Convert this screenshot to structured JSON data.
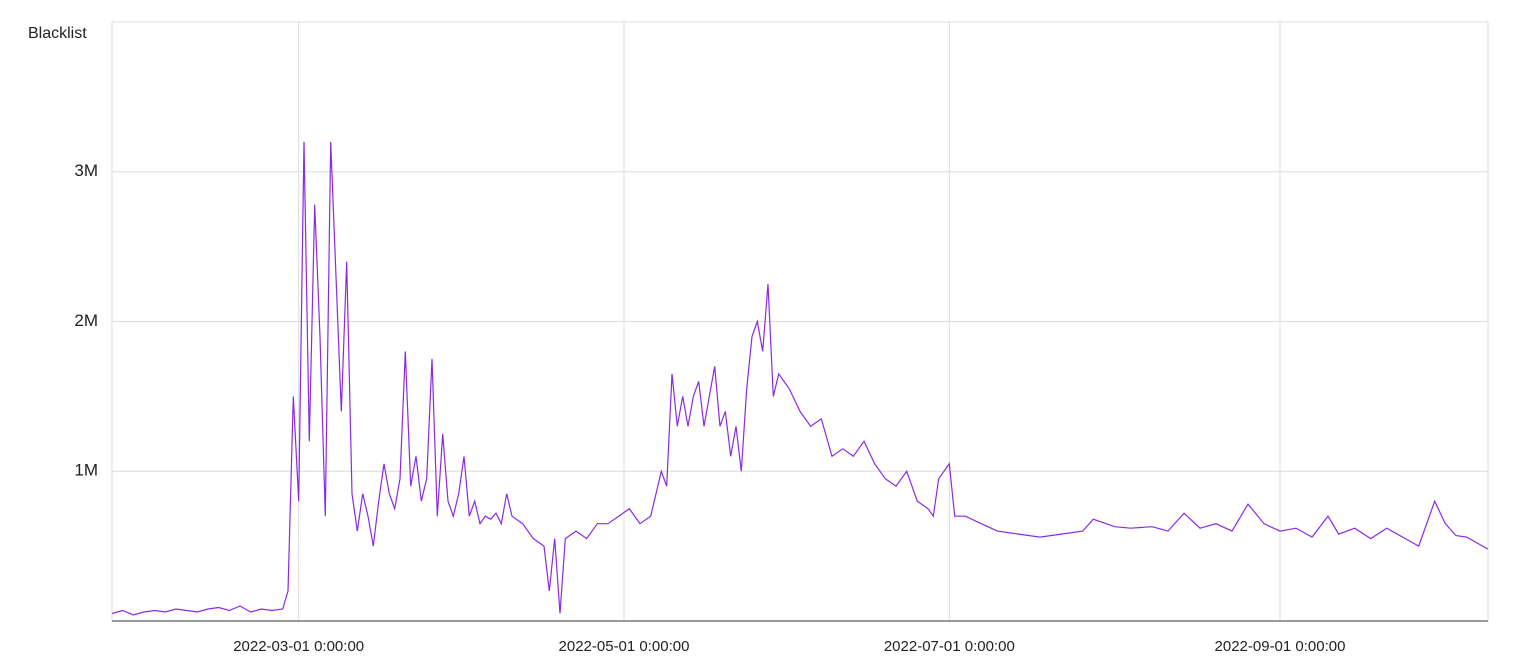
{
  "chart_data": {
    "type": "line",
    "ylabel": "Blacklist",
    "x": [
      "2022-01-25",
      "2022-01-27",
      "2022-01-29",
      "2022-01-31",
      "2022-02-02",
      "2022-02-04",
      "2022-02-06",
      "2022-02-08",
      "2022-02-10",
      "2022-02-12",
      "2022-02-14",
      "2022-02-16",
      "2022-02-18",
      "2022-02-20",
      "2022-02-22",
      "2022-02-24",
      "2022-02-26",
      "2022-02-27",
      "2022-02-28",
      "2022-03-01",
      "2022-03-02",
      "2022-03-03",
      "2022-03-04",
      "2022-03-05",
      "2022-03-06",
      "2022-03-07",
      "2022-03-08",
      "2022-03-09",
      "2022-03-10",
      "2022-03-11",
      "2022-03-12",
      "2022-03-13",
      "2022-03-14",
      "2022-03-15",
      "2022-03-16",
      "2022-03-17",
      "2022-03-18",
      "2022-03-19",
      "2022-03-20",
      "2022-03-21",
      "2022-03-22",
      "2022-03-23",
      "2022-03-24",
      "2022-03-25",
      "2022-03-26",
      "2022-03-27",
      "2022-03-28",
      "2022-03-29",
      "2022-03-30",
      "2022-03-31",
      "2022-04-01",
      "2022-04-02",
      "2022-04-03",
      "2022-04-04",
      "2022-04-05",
      "2022-04-06",
      "2022-04-07",
      "2022-04-08",
      "2022-04-09",
      "2022-04-10",
      "2022-04-12",
      "2022-04-14",
      "2022-04-16",
      "2022-04-17",
      "2022-04-18",
      "2022-04-19",
      "2022-04-20",
      "2022-04-22",
      "2022-04-24",
      "2022-04-26",
      "2022-04-28",
      "2022-04-30",
      "2022-05-02",
      "2022-05-04",
      "2022-05-06",
      "2022-05-08",
      "2022-05-09",
      "2022-05-10",
      "2022-05-11",
      "2022-05-12",
      "2022-05-13",
      "2022-05-14",
      "2022-05-15",
      "2022-05-16",
      "2022-05-17",
      "2022-05-18",
      "2022-05-19",
      "2022-05-20",
      "2022-05-21",
      "2022-05-22",
      "2022-05-23",
      "2022-05-24",
      "2022-05-25",
      "2022-05-26",
      "2022-05-27",
      "2022-05-28",
      "2022-05-29",
      "2022-05-30",
      "2022-06-01",
      "2022-06-03",
      "2022-06-05",
      "2022-06-07",
      "2022-06-09",
      "2022-06-11",
      "2022-06-13",
      "2022-06-15",
      "2022-06-17",
      "2022-06-19",
      "2022-06-21",
      "2022-06-23",
      "2022-06-25",
      "2022-06-27",
      "2022-06-28",
      "2022-06-29",
      "2022-07-01",
      "2022-07-02",
      "2022-07-04",
      "2022-07-07",
      "2022-07-10",
      "2022-07-14",
      "2022-07-18",
      "2022-07-22",
      "2022-07-26",
      "2022-07-28",
      "2022-08-01",
      "2022-08-04",
      "2022-08-08",
      "2022-08-11",
      "2022-08-14",
      "2022-08-17",
      "2022-08-20",
      "2022-08-23",
      "2022-08-26",
      "2022-08-29",
      "2022-09-01",
      "2022-09-04",
      "2022-09-07",
      "2022-09-10",
      "2022-09-12",
      "2022-09-15",
      "2022-09-18",
      "2022-09-21",
      "2022-09-24",
      "2022-09-27",
      "2022-09-30",
      "2022-10-02",
      "2022-10-04",
      "2022-10-06",
      "2022-10-08",
      "2022-10-10"
    ],
    "series": [
      {
        "name": "Blacklist",
        "color": "#8a2be2",
        "values": [
          50000,
          70000,
          40000,
          60000,
          70000,
          60000,
          80000,
          70000,
          60000,
          80000,
          90000,
          70000,
          100000,
          60000,
          80000,
          70000,
          80000,
          200000,
          1500000,
          800000,
          3200000,
          1200000,
          2780000,
          1900000,
          700000,
          3200000,
          2300000,
          1400000,
          2400000,
          850000,
          600000,
          850000,
          700000,
          500000,
          800000,
          1050000,
          850000,
          750000,
          950000,
          1800000,
          900000,
          1100000,
          800000,
          950000,
          1750000,
          700000,
          1250000,
          800000,
          700000,
          850000,
          1100000,
          700000,
          800000,
          650000,
          700000,
          680000,
          720000,
          650000,
          850000,
          700000,
          650000,
          550000,
          500000,
          200000,
          550000,
          50000,
          550000,
          600000,
          550000,
          650000,
          650000,
          700000,
          750000,
          650000,
          700000,
          1000000,
          900000,
          1650000,
          1300000,
          1500000,
          1300000,
          1500000,
          1600000,
          1300000,
          1500000,
          1700000,
          1300000,
          1400000,
          1100000,
          1300000,
          1000000,
          1550000,
          1900000,
          2000000,
          1800000,
          2250000,
          1500000,
          1650000,
          1550000,
          1400000,
          1300000,
          1350000,
          1100000,
          1150000,
          1100000,
          1200000,
          1050000,
          950000,
          900000,
          1000000,
          800000,
          750000,
          700000,
          950000,
          1050000,
          700000,
          700000,
          650000,
          600000,
          580000,
          560000,
          580000,
          600000,
          680000,
          630000,
          620000,
          630000,
          600000,
          720000,
          620000,
          650000,
          600000,
          780000,
          650000,
          600000,
          620000,
          560000,
          700000,
          580000,
          620000,
          550000,
          620000,
          560000,
          500000,
          800000,
          650000,
          570000,
          560000,
          520000,
          480000
        ]
      }
    ],
    "xlim": [
      "2022-01-25",
      "2022-10-10"
    ],
    "xticks": [
      {
        "value": "2022-03-01",
        "label": "2022-03-01 0:00:00"
      },
      {
        "value": "2022-05-01",
        "label": "2022-05-01 0:00:00"
      },
      {
        "value": "2022-07-01",
        "label": "2022-07-01 0:00:00"
      },
      {
        "value": "2022-09-01",
        "label": "2022-09-01 0:00:00"
      }
    ],
    "ylim": [
      0,
      4000000
    ],
    "yticks": [
      {
        "value": 1000000,
        "label": "1M"
      },
      {
        "value": 2000000,
        "label": "2M"
      },
      {
        "value": 3000000,
        "label": "3M"
      }
    ],
    "grid": true
  }
}
